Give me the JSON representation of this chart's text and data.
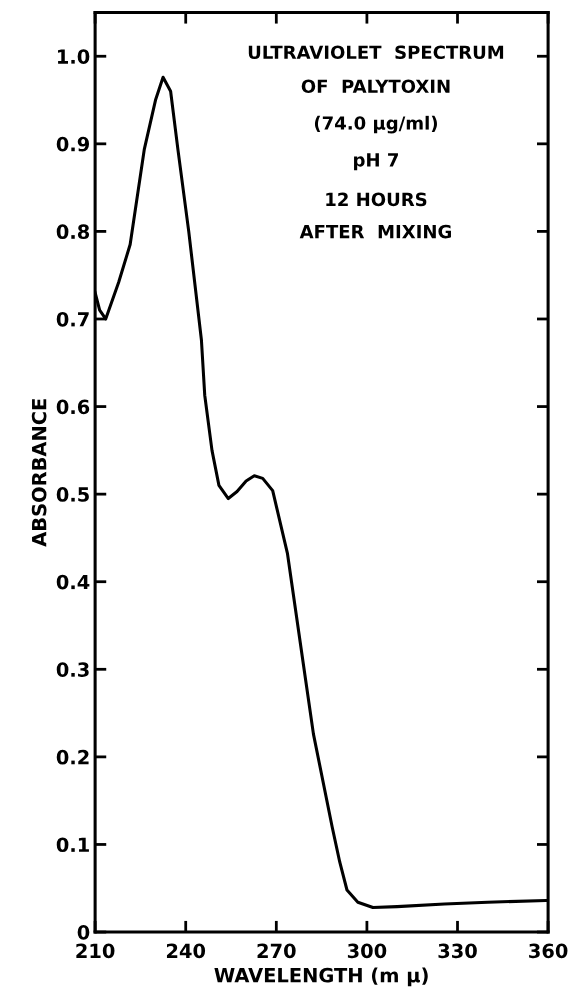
{
  "chart_data": {
    "type": "line",
    "xlabel": "WAVELENGTH (m μ)",
    "ylabel": "ABSORBANCE",
    "annotations": [
      "ULTRAVIOLET  SPECTRUM",
      "OF  PALYTOXIN",
      "(74.0 μg/ml)",
      "pH 7",
      "12 HOURS",
      "AFTER  MIXING"
    ],
    "series": [
      {
        "color": "#000000",
        "x": [
          210,
          211.5,
          213.5,
          217.8,
          221.6,
          226.3,
          230,
          232.5,
          235,
          237.4,
          241,
          245.2,
          246.3,
          248.7,
          251,
          254.1,
          257,
          260,
          262.7,
          265.5,
          268.8,
          273.7,
          279.7,
          282.3,
          288.5,
          291,
          293.4,
          297,
          302,
          310,
          325.7,
          340,
          359.3,
          360
        ],
        "values": [
          0.73,
          0.71,
          0.7,
          0.742,
          0.785,
          0.894,
          0.95,
          0.976,
          0.96,
          0.894,
          0.8,
          0.676,
          0.613,
          0.55,
          0.51,
          0.495,
          0.503,
          0.515,
          0.521,
          0.518,
          0.504,
          0.432,
          0.288,
          0.226,
          0.12,
          0.08,
          0.048,
          0.034,
          0.028,
          0.029,
          0.032,
          0.034,
          0.036,
          0.036
        ]
      }
    ],
    "xlim": [
      210,
      360
    ],
    "ylim": [
      0,
      1.05
    ],
    "xticks": [
      210,
      240,
      270,
      300,
      330,
      360
    ],
    "yticks": [
      0,
      0.1,
      0.2,
      0.3,
      0.4,
      0.5,
      0.6,
      0.7,
      0.8,
      0.9,
      {
        "value": 1,
        "label": "1.0"
      }
    ],
    "grid": false,
    "legend": false,
    "marker": "none",
    "line_style": "solid"
  }
}
